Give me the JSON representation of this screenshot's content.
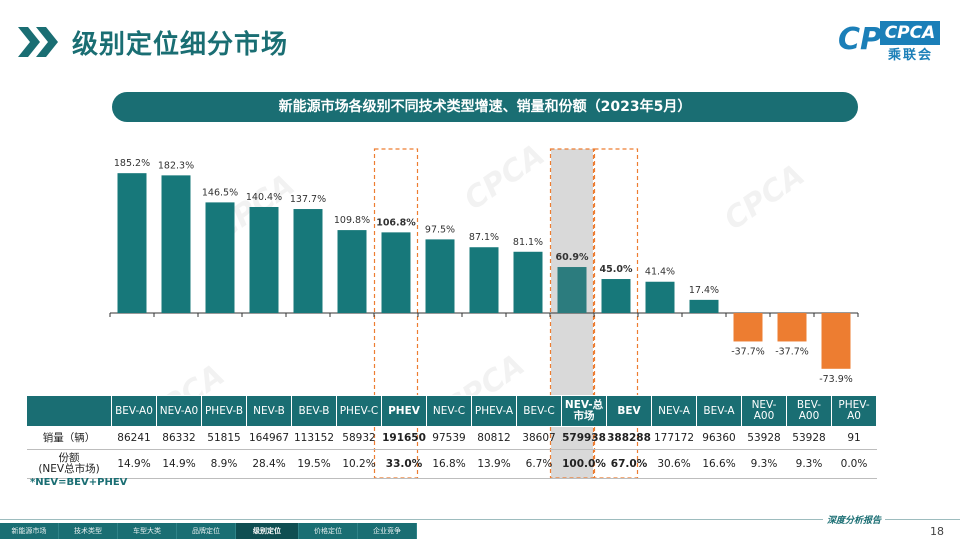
{
  "page": {
    "title": "级别定位细分市场",
    "subtitle": "新能源市场各级别不同技术类型增速、销量和份额（2023年5月）",
    "footnote": "*NEV=BEV+PHEV",
    "page_number": "18",
    "footer_slogan": "深度分析报告"
  },
  "logo": {
    "text": "CPCA",
    "sub": "乘联会",
    "mark": "CP"
  },
  "watermark": "CPCA",
  "footer_tabs": [
    "新能源市场",
    "技术类型",
    "车型大类",
    "品牌定位",
    "级别定位",
    "价格定位",
    "企业竞争"
  ],
  "footer_active_index": 4,
  "chart_data": {
    "type": "bar",
    "title": "新能源市场各级别不同技术类型增速、销量和份额（2023年5月）",
    "value_unit": "%",
    "categories": [
      "BEV-A0",
      "NEV-A0",
      "PHEV-B",
      "NEV-B",
      "BEV-B",
      "PHEV-C",
      "PHEV",
      "NEV-C",
      "PHEV-A",
      "BEV-C",
      "NEV-总市场",
      "BEV",
      "NEV-A",
      "BEV-A",
      "NEV-A00",
      "BEV-A00",
      "PHEV-A0"
    ],
    "value_labels": [
      "185.2%",
      "182.3%",
      "146.5%",
      "140.4%",
      "137.7%",
      "109.8%",
      "106.8%",
      "97.5%",
      "87.1%",
      "81.1%",
      "60.9%",
      "45.0%",
      "41.4%",
      "17.4%",
      "-37.7%",
      "-37.7%",
      "-73.9%"
    ],
    "values": [
      185.2,
      182.3,
      146.5,
      140.4,
      137.7,
      109.8,
      106.8,
      97.5,
      87.1,
      81.1,
      60.9,
      45.0,
      41.4,
      17.4,
      -37.7,
      -37.7,
      -73.9
    ],
    "highlighted": [
      "PHEV",
      "NEV-总市场",
      "BEV"
    ],
    "total_market": "NEV-总市场",
    "colors": {
      "positive": "#17787a",
      "negative": "#ed7d31",
      "total": "#2c7c7e",
      "total_bg": "#d9d9d9",
      "highlight_box": "#ed7d31"
    },
    "table": {
      "headers": [
        "",
        "BEV-A0",
        "NEV-A0",
        "PHEV-B",
        "NEV-B",
        "BEV-B",
        "PHEV-C",
        "PHEV",
        "NEV-C",
        "PHEV-A",
        "BEV-C",
        "NEV-总\n市场",
        "BEV",
        "NEV-A",
        "BEV-A",
        "NEV-\nA00",
        "BEV-\nA00",
        "PHEV-\nA0"
      ],
      "rows": [
        {
          "label": "销量（辆）",
          "cells": [
            "86241",
            "86332",
            "51815",
            "164967",
            "113152",
            "58932",
            "191650",
            "97539",
            "80812",
            "38607",
            "579938",
            "388288",
            "177172",
            "96360",
            "53928",
            "53928",
            "91"
          ]
        },
        {
          "label": "份额\n(NEV总市场)",
          "cells": [
            "14.9%",
            "14.9%",
            "8.9%",
            "28.4%",
            "19.5%",
            "10.2%",
            "33.0%",
            "16.8%",
            "13.9%",
            "6.7%",
            "100.0%",
            "67.0%",
            "30.6%",
            "16.6%",
            "9.3%",
            "9.3%",
            "0.0%"
          ]
        }
      ]
    }
  }
}
